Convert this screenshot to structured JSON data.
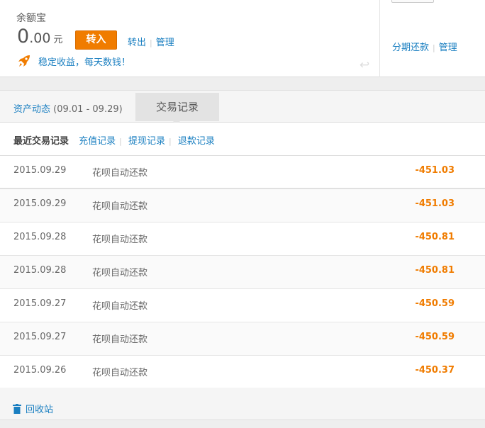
{
  "balance": {
    "title": "余额宝",
    "int": "0",
    "dec": ".00",
    "unit": "元",
    "transfer_in": "转入",
    "transfer_out": "转出",
    "manage": "管理",
    "promo": "稳定收益，每天数钱！"
  },
  "right": {
    "installment": "分期还款",
    "manage": "管理"
  },
  "tabs": {
    "assets": "资产动态",
    "range": "(09.01 - 09.29)",
    "records": "交易记录"
  },
  "subnav": {
    "current": "最近交易记录",
    "recharge": "充值记录",
    "withdraw": "提现记录",
    "refund": "退款记录"
  },
  "rows": [
    {
      "date": "2015.09.29",
      "name": "花呗自动还款",
      "amount": "-451.03"
    },
    {
      "date": "2015.09.29",
      "name": "花呗自动还款",
      "amount": "-451.03"
    },
    {
      "date": "2015.09.28",
      "name": "花呗自动还款",
      "amount": "-450.81"
    },
    {
      "date": "2015.09.28",
      "name": "花呗自动还款",
      "amount": "-450.81"
    },
    {
      "date": "2015.09.27",
      "name": "花呗自动还款",
      "amount": "-450.59"
    },
    {
      "date": "2015.09.27",
      "name": "花呗自动还款",
      "amount": "-450.59"
    },
    {
      "date": "2015.09.26",
      "name": "花呗自动还款",
      "amount": "-450.37"
    }
  ],
  "footer": {
    "recycle": "回收站"
  },
  "colors": {
    "accent": "#f07c00",
    "link": "#1a7fc1"
  }
}
